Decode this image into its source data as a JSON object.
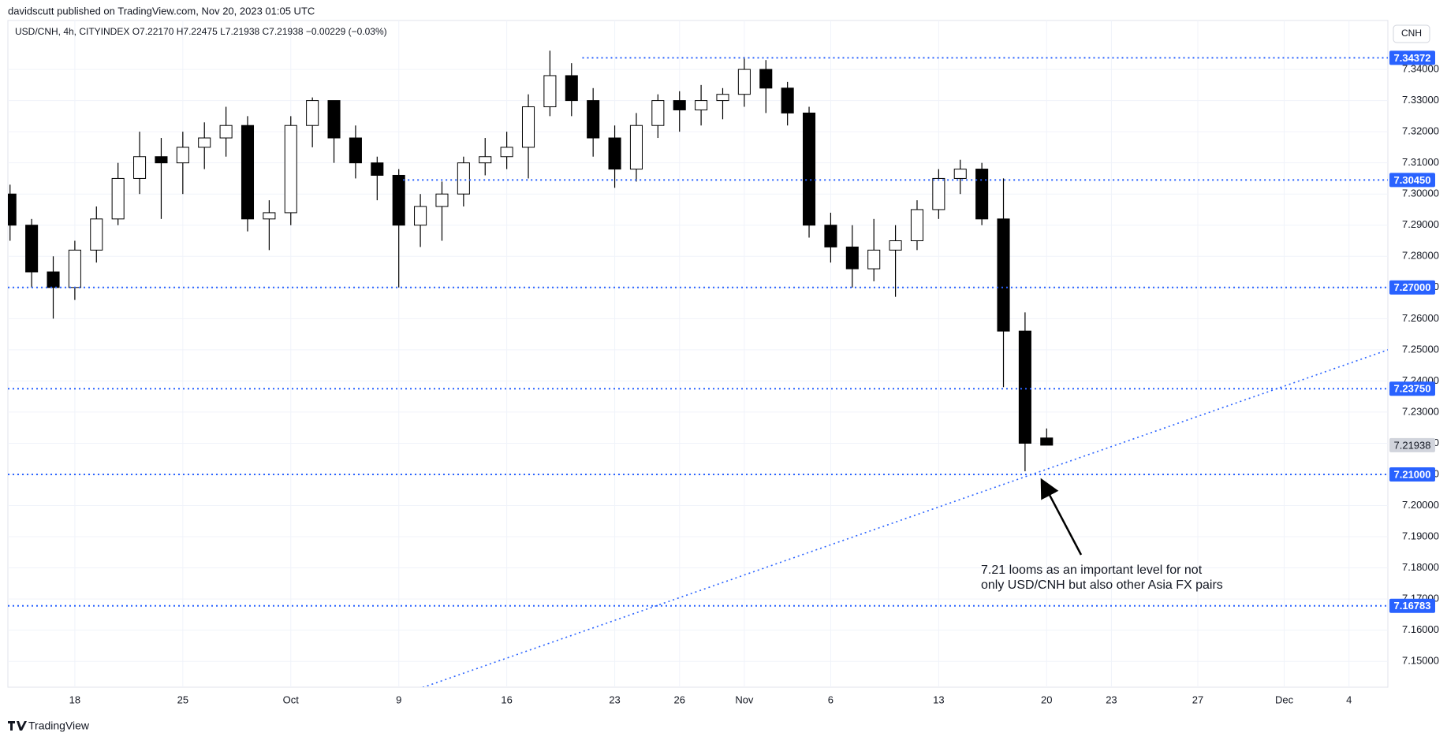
{
  "header": {
    "byline": "davidscutt published on TradingView.com, Nov 20, 2023 01:05 UTC"
  },
  "footer": {
    "brand": "TradingView"
  },
  "chart_data": {
    "type": "candlestick",
    "title": "USD/CNH, 4h, CITYINDEX  O7.22170  H7.22475  L7.21938  C7.21938  −0.00229 (−0.03%)",
    "currency": "CNH",
    "up_color": "#ffffff",
    "down_color": "#000000",
    "border_color": "#000000",
    "level_color": "#2962ff",
    "grid": true,
    "xlim": [
      -3.1,
      60.8
    ],
    "ylim": [
      7.1417,
      7.3557
    ],
    "xticks": [
      {
        "value": 0,
        "label": "18"
      },
      {
        "value": 5,
        "label": "25"
      },
      {
        "value": 10,
        "label": "Oct"
      },
      {
        "value": 15,
        "label": "9"
      },
      {
        "value": 20,
        "label": "16"
      },
      {
        "value": 25,
        "label": "23"
      },
      {
        "value": 28,
        "label": "26"
      },
      {
        "value": 31,
        "label": "Nov"
      },
      {
        "value": 35,
        "label": "6"
      },
      {
        "value": 40,
        "label": "13"
      },
      {
        "value": 45,
        "label": "20"
      },
      {
        "value": 48,
        "label": "23"
      },
      {
        "value": 52,
        "label": "27"
      },
      {
        "value": 56,
        "label": "Dec"
      },
      {
        "value": 59,
        "label": "4"
      }
    ],
    "yticks": [
      {
        "value": 7.15,
        "label": "7.15000"
      },
      {
        "value": 7.16,
        "label": "7.16000"
      },
      {
        "value": 7.17,
        "label": "7.17000"
      },
      {
        "value": 7.18,
        "label": "7.18000"
      },
      {
        "value": 7.19,
        "label": "7.19000"
      },
      {
        "value": 7.2,
        "label": "7.20000"
      },
      {
        "value": 7.21,
        "label": "7.21000"
      },
      {
        "value": 7.22,
        "label": "7.22000"
      },
      {
        "value": 7.23,
        "label": "7.23000"
      },
      {
        "value": 7.24,
        "label": "7.24000"
      },
      {
        "value": 7.25,
        "label": "7.25000"
      },
      {
        "value": 7.26,
        "label": "7.26000"
      },
      {
        "value": 7.27,
        "label": "7.27000"
      },
      {
        "value": 7.28,
        "label": "7.28000"
      },
      {
        "value": 7.29,
        "label": "7.29000"
      },
      {
        "value": 7.3,
        "label": "7.30000"
      },
      {
        "value": 7.31,
        "label": "7.31000"
      },
      {
        "value": 7.32,
        "label": "7.32000"
      },
      {
        "value": 7.33,
        "label": "7.33000"
      },
      {
        "value": 7.34,
        "label": "7.34000"
      }
    ],
    "x": [
      -3,
      -2,
      -1,
      0,
      1,
      2,
      3,
      4,
      5,
      6,
      7,
      8,
      9,
      10,
      11,
      12,
      13,
      14,
      15,
      16,
      17,
      18,
      19,
      20,
      21,
      22,
      23,
      24,
      25,
      26,
      27,
      28,
      29,
      30,
      31,
      32,
      33,
      34,
      35,
      36,
      37,
      38,
      39,
      40,
      41,
      42,
      43,
      44,
      45
    ],
    "open": [
      7.3,
      7.29,
      7.275,
      7.27,
      7.282,
      7.292,
      7.305,
      7.312,
      7.31,
      7.315,
      7.318,
      7.322,
      7.292,
      7.294,
      7.322,
      7.33,
      7.318,
      7.31,
      7.306,
      7.29,
      7.296,
      7.3,
      7.31,
      7.312,
      7.315,
      7.328,
      7.338,
      7.33,
      7.318,
      7.308,
      7.322,
      7.33,
      7.327,
      7.33,
      7.332,
      7.34,
      7.334,
      7.326,
      7.29,
      7.283,
      7.276,
      7.282,
      7.285,
      7.295,
      7.305,
      7.308,
      7.292,
      7.256,
      7.2217
    ],
    "high": [
      7.303,
      7.292,
      7.28,
      7.285,
      7.296,
      7.31,
      7.32,
      7.318,
      7.32,
      7.323,
      7.328,
      7.325,
      7.298,
      7.325,
      7.331,
      7.33,
      7.322,
      7.312,
      7.308,
      7.3,
      7.304,
      7.312,
      7.318,
      7.32,
      7.332,
      7.346,
      7.342,
      7.334,
      7.322,
      7.326,
      7.332,
      7.333,
      7.335,
      7.334,
      7.344,
      7.343,
      7.336,
      7.328,
      7.294,
      7.29,
      7.292,
      7.29,
      7.298,
      7.308,
      7.311,
      7.31,
      7.305,
      7.262,
      7.22475
    ],
    "low": [
      7.285,
      7.27,
      7.26,
      7.266,
      7.278,
      7.29,
      7.3,
      7.292,
      7.3,
      7.308,
      7.312,
      7.288,
      7.282,
      7.29,
      7.315,
      7.31,
      7.305,
      7.298,
      7.27,
      7.283,
      7.285,
      7.296,
      7.306,
      7.308,
      7.305,
      7.325,
      7.325,
      7.312,
      7.302,
      7.304,
      7.318,
      7.32,
      7.322,
      7.324,
      7.328,
      7.326,
      7.322,
      7.286,
      7.278,
      7.27,
      7.272,
      7.267,
      7.282,
      7.292,
      7.3,
      7.29,
      7.238,
      7.211,
      7.21938
    ],
    "close": [
      7.29,
      7.275,
      7.27,
      7.282,
      7.292,
      7.305,
      7.312,
      7.31,
      7.315,
      7.318,
      7.322,
      7.292,
      7.294,
      7.322,
      7.33,
      7.318,
      7.31,
      7.306,
      7.29,
      7.296,
      7.3,
      7.31,
      7.312,
      7.315,
      7.328,
      7.338,
      7.33,
      7.318,
      7.308,
      7.322,
      7.33,
      7.327,
      7.33,
      7.332,
      7.34,
      7.334,
      7.326,
      7.29,
      7.283,
      7.276,
      7.282,
      7.285,
      7.295,
      7.305,
      7.308,
      7.292,
      7.256,
      7.22,
      7.21938
    ],
    "last_price": {
      "value": 7.21938,
      "label": "7.21938"
    },
    "levels": [
      {
        "value": 7.34372,
        "label": "7.34372",
        "from": 23.5
      },
      {
        "value": 7.3045,
        "label": "7.30450",
        "from": 15.2
      },
      {
        "value": 7.27,
        "label": "7.27000",
        "from": -3.1
      },
      {
        "value": 7.2375,
        "label": "7.23750",
        "from": -3.1
      },
      {
        "value": 7.21,
        "label": "7.21000",
        "from": -3.1
      },
      {
        "value": 7.16783,
        "label": "7.16783",
        "from": -3.1
      }
    ],
    "trendline": {
      "x": [
        15.9,
        61.1
      ],
      "y": [
        7.1411,
        7.2507
      ]
    },
    "annotation": [
      "7.21 looms as an important level for not",
      "only USD/CNH but also other Asia FX pairs"
    ]
  }
}
